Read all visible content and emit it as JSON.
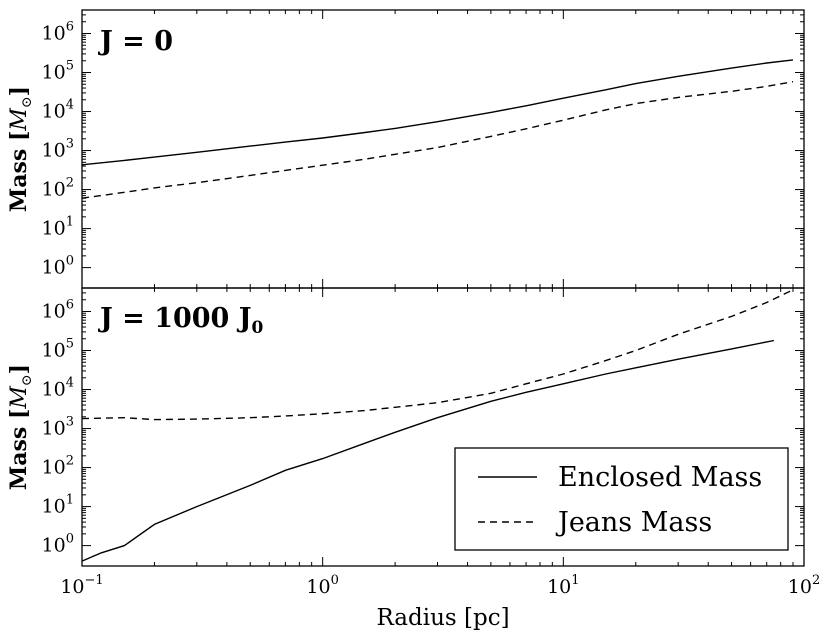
{
  "chart_data": [
    {
      "type": "line",
      "panel_label": "J = 0",
      "xscale": "log",
      "yscale": "log",
      "xlim": [
        0.1,
        100
      ],
      "ylim": [
        0.3,
        4000000
      ],
      "xlabel": "",
      "ylabel": "Mass [M⊙]",
      "yticks": [
        {
          "value": 1,
          "base": "10",
          "exp": "0"
        },
        {
          "value": 10,
          "base": "10",
          "exp": "1"
        },
        {
          "value": 100,
          "base": "10",
          "exp": "2"
        },
        {
          "value": 1000,
          "base": "10",
          "exp": "3"
        },
        {
          "value": 10000,
          "base": "10",
          "exp": "4"
        },
        {
          "value": 100000,
          "base": "10",
          "exp": "5"
        },
        {
          "value": 1000000,
          "base": "10",
          "exp": "6"
        }
      ],
      "series": [
        {
          "name": "Enclosed Mass",
          "style": "solid",
          "x": [
            0.1,
            0.15,
            0.2,
            0.3,
            0.5,
            0.7,
            1,
            1.5,
            2,
            3,
            5,
            7,
            10,
            15,
            20,
            30,
            50,
            70,
            90
          ],
          "y": [
            430,
            560,
            680,
            900,
            1300,
            1650,
            2100,
            2900,
            3700,
            5500,
            9500,
            14000,
            22000,
            36000,
            52000,
            80000,
            130000,
            175000,
            210000
          ]
        },
        {
          "name": "Jeans Mass",
          "style": "dashed",
          "x": [
            0.1,
            0.15,
            0.2,
            0.3,
            0.5,
            0.7,
            1,
            1.5,
            2,
            3,
            5,
            7,
            10,
            15,
            20,
            30,
            50,
            70,
            90
          ],
          "y": [
            60,
            85,
            110,
            150,
            230,
            310,
            420,
            600,
            800,
            1200,
            2300,
            3600,
            6000,
            11000,
            16000,
            23000,
            33000,
            44000,
            58000
          ]
        }
      ]
    },
    {
      "type": "line",
      "panel_label": "J = 1000 J₀",
      "panel_label_main": "J = 1000 J",
      "panel_label_sub": "0",
      "xscale": "log",
      "yscale": "log",
      "xlim": [
        0.1,
        100
      ],
      "ylim": [
        0.3,
        4000000
      ],
      "xlabel": "Radius [pc]",
      "ylabel": "Mass [M⊙]",
      "xticks": [
        {
          "value": 0.1,
          "base": "10",
          "exp": "−1"
        },
        {
          "value": 1,
          "base": "10",
          "exp": "0"
        },
        {
          "value": 10,
          "base": "10",
          "exp": "1"
        },
        {
          "value": 100,
          "base": "10",
          "exp": "2"
        }
      ],
      "yticks": [
        {
          "value": 1,
          "base": "10",
          "exp": "0"
        },
        {
          "value": 10,
          "base": "10",
          "exp": "1"
        },
        {
          "value": 100,
          "base": "10",
          "exp": "2"
        },
        {
          "value": 1000,
          "base": "10",
          "exp": "3"
        },
        {
          "value": 10000,
          "base": "10",
          "exp": "4"
        },
        {
          "value": 100000,
          "base": "10",
          "exp": "5"
        },
        {
          "value": 1000000,
          "base": "10",
          "exp": "6"
        }
      ],
      "legend_position": "lower-right",
      "series": [
        {
          "name": "Enclosed Mass",
          "style": "solid",
          "x": [
            0.1,
            0.12,
            0.15,
            0.2,
            0.3,
            0.5,
            0.7,
            1,
            1.5,
            2,
            3,
            5,
            7,
            10,
            15,
            20,
            30,
            50,
            75
          ],
          "y": [
            0.4,
            0.65,
            1,
            3.5,
            10,
            35,
            85,
            170,
            420,
            800,
            1900,
            5000,
            8500,
            14000,
            25000,
            36000,
            60000,
            110000,
            180000
          ]
        },
        {
          "name": "Jeans Mass",
          "style": "dashed",
          "x": [
            0.1,
            0.15,
            0.2,
            0.3,
            0.5,
            0.7,
            1,
            1.5,
            2,
            3,
            5,
            7,
            10,
            15,
            20,
            30,
            50,
            70,
            90
          ],
          "y": [
            1800,
            1900,
            1700,
            1750,
            1900,
            2100,
            2400,
            2900,
            3500,
            4600,
            8000,
            14000,
            25000,
            55000,
            100000,
            260000,
            750000,
            1700000,
            3600000
          ]
        }
      ]
    }
  ]
}
